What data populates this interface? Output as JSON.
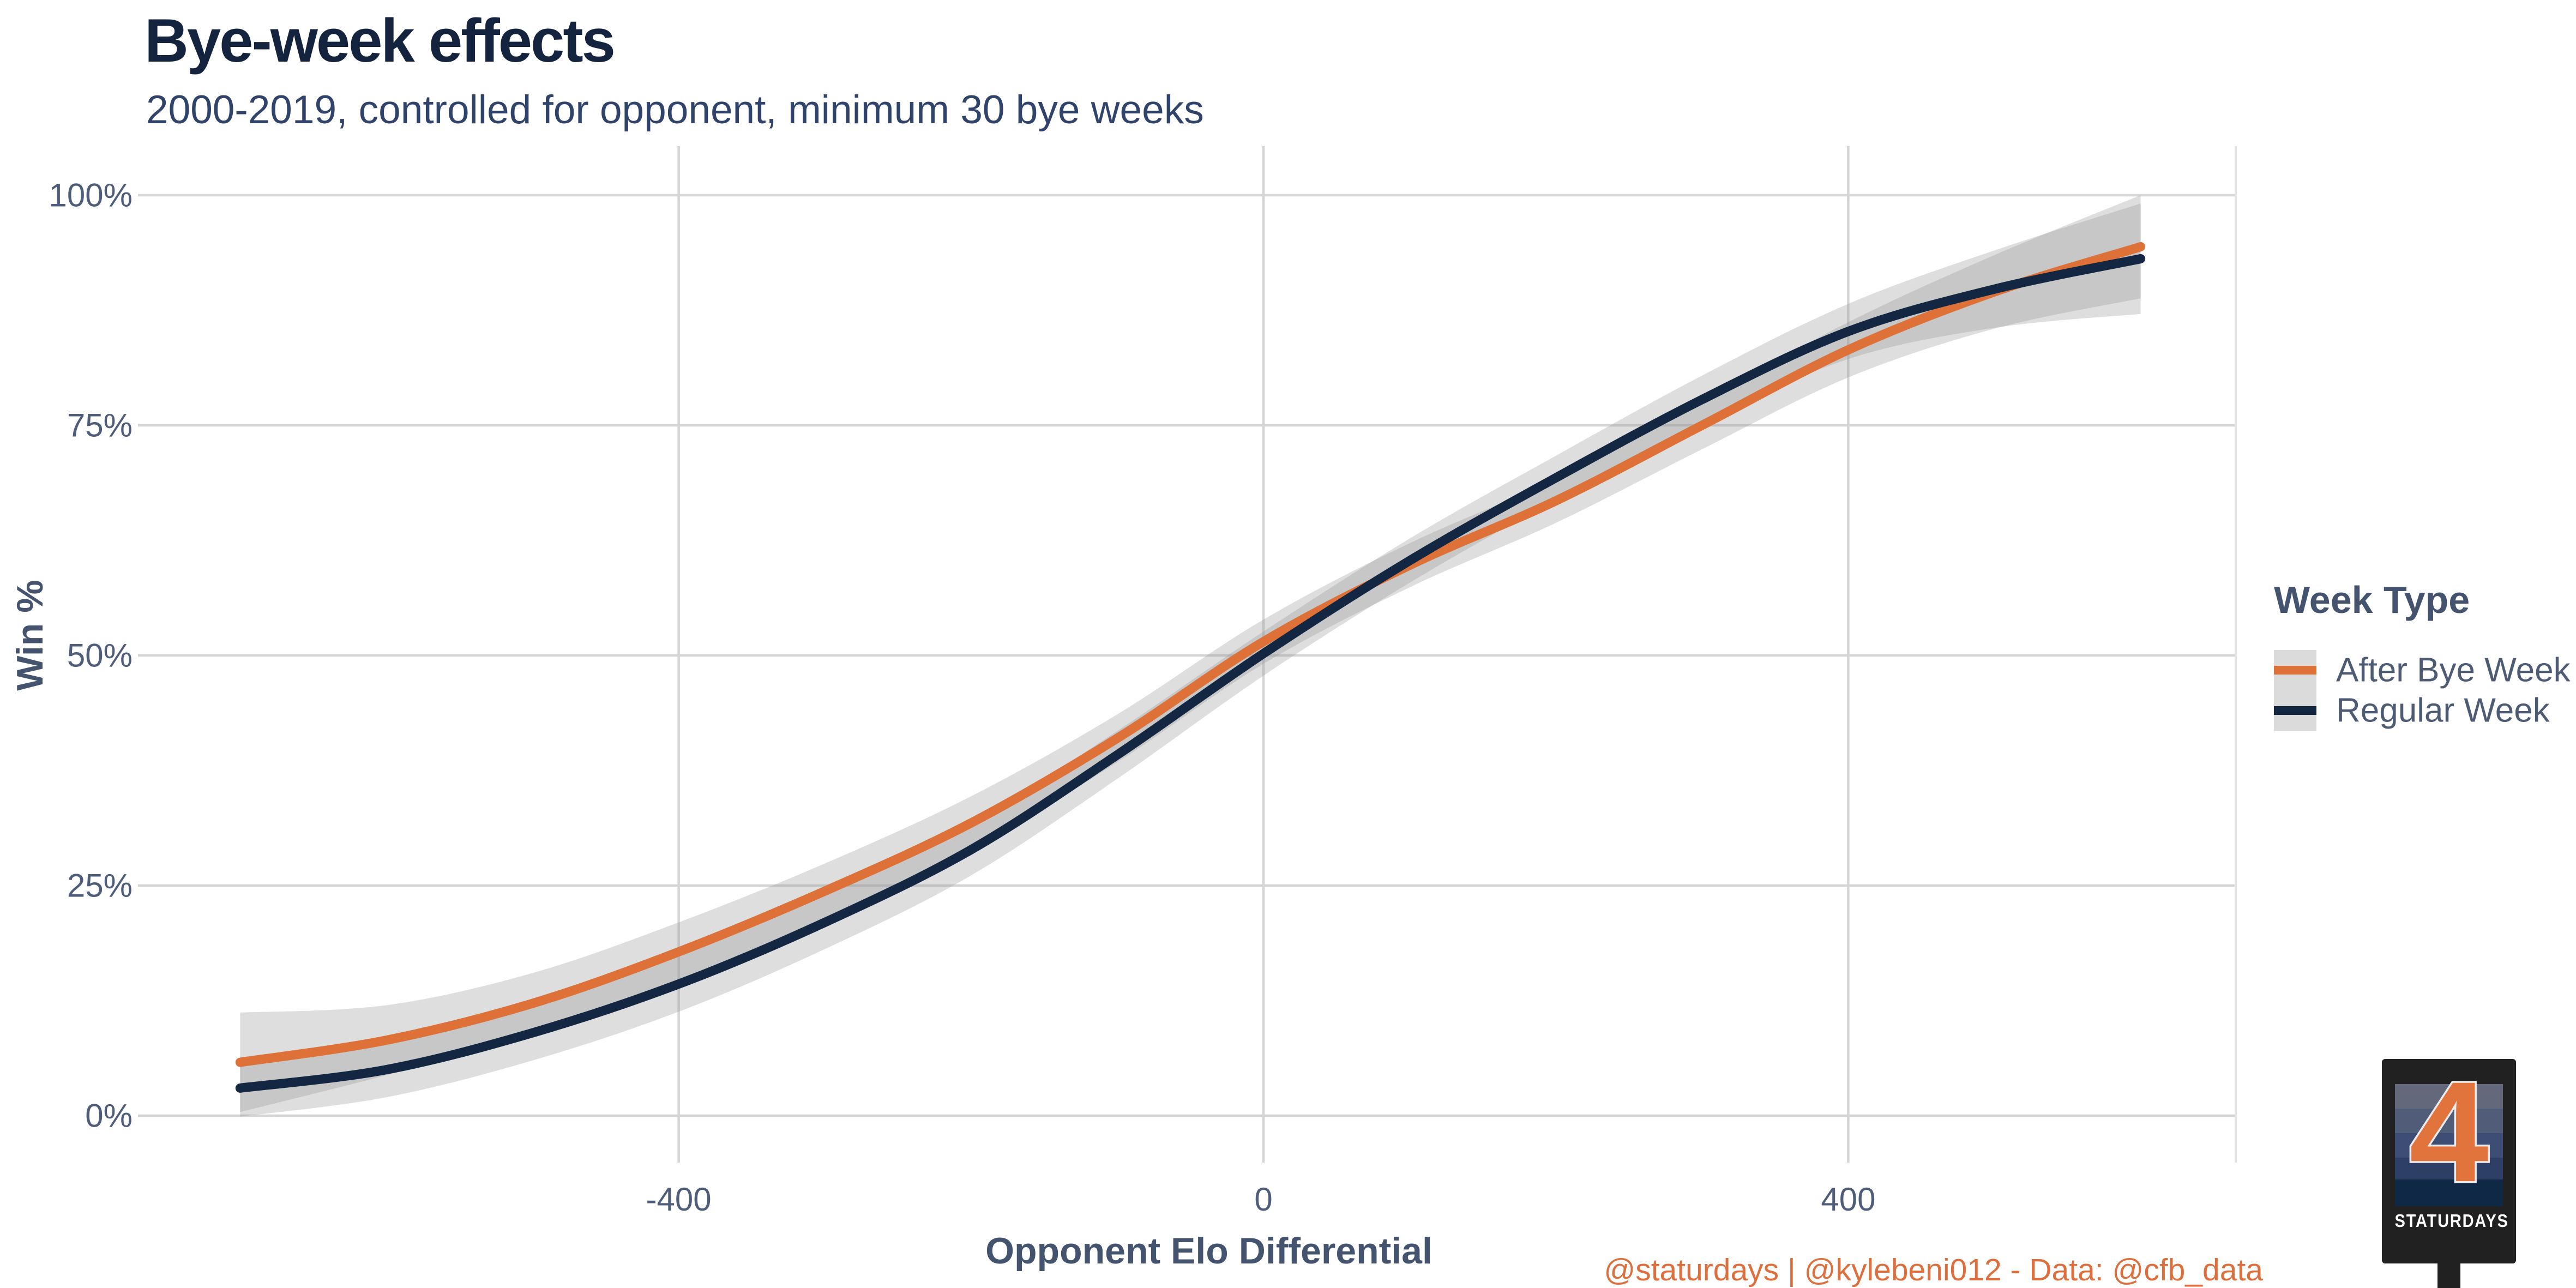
{
  "title": "Bye-week effects",
  "subtitle": "2000-2019, controlled for opponent, minimum 30 bye weeks",
  "caption": "@staturdays | @kylebeni012 - Data: @cfb_data",
  "legend": {
    "title": "Week Type",
    "items": [
      {
        "label": "After Bye Week",
        "color": "#DD7137"
      },
      {
        "label": "Regular Week",
        "color": "#132642"
      }
    ]
  },
  "logo": {
    "number": "4",
    "text": "STATURDAYS",
    "stripe_colors": [
      "#63687A",
      "#515C79",
      "#3E4D73",
      "#2E3F66",
      "#0F2845"
    ],
    "sign_color": "#212121",
    "number_color": "#E0743C"
  },
  "colors": {
    "title": "#15243E",
    "subtitle": "#30436B",
    "axis_text": "#4E5D79",
    "axis_title": "#44536E",
    "gridline": "#D5D5D5",
    "ribbon": "#DEDEDE",
    "after_bye_week": "#DD7137",
    "regular_week": "#132642",
    "caption": "#DC6F3D"
  },
  "chart_data": {
    "type": "line",
    "title": "Bye-week effects",
    "subtitle": "2000-2019, controlled for opponent, minimum 30 bye weeks",
    "xlabel": "Opponent Elo Differential",
    "ylabel": "Win %",
    "x": [
      -700,
      -600,
      -500,
      -400,
      -300,
      -200,
      -100,
      0,
      100,
      200,
      300,
      400,
      500,
      600
    ],
    "series": [
      {
        "name": "After Bye Week",
        "color": "#DD7137",
        "values": [
          5.8,
          8.2,
          12.2,
          17.8,
          24.4,
          31.8,
          41.0,
          51.5,
          59.8,
          66.8,
          75.0,
          83.2,
          89.5,
          94.4
        ],
        "ci_half_width": [
          5.4,
          3.8,
          3.3,
          3.2,
          3.0,
          2.9,
          2.6,
          2.4,
          2.4,
          2.4,
          2.6,
          3.0,
          4.0,
          5.6
        ]
      },
      {
        "name": "Regular Week",
        "color": "#132642",
        "values": [
          3.0,
          5.0,
          9.0,
          14.3,
          21.0,
          28.9,
          39.2,
          50.2,
          60.3,
          69.3,
          77.8,
          85.2,
          89.8,
          93.1
        ],
        "ci_half_width": [
          3.1,
          3.0,
          3.0,
          3.0,
          2.9,
          2.8,
          2.6,
          2.4,
          2.4,
          2.4,
          2.6,
          3.0,
          4.2,
          6.0
        ]
      }
    ],
    "x_ticks": [
      -400,
      0,
      400
    ],
    "x_tick_labels": [
      "-400",
      "0",
      "400"
    ],
    "y_ticks": [
      0,
      25,
      50,
      75,
      100
    ],
    "y_tick_labels": [
      "0%",
      "25%",
      "50%",
      "75%",
      "100%"
    ],
    "xlim": [
      -770,
      665
    ],
    "ylim": [
      -5.1,
      105.3
    ],
    "grid": true,
    "legend_position": "right",
    "ribbon": true
  }
}
